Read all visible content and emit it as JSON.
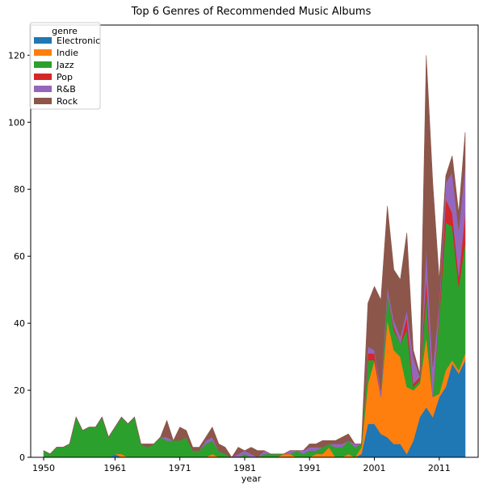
{
  "chart_data": {
    "type": "area",
    "title": "Top 6 Genres of Recommended Music Albums",
    "xlabel": "year",
    "ylabel": "",
    "xlim": [
      1948,
      2017
    ],
    "ylim": [
      0,
      129
    ],
    "x_ticks": [
      1950,
      1961,
      1971,
      1981,
      1991,
      2001,
      2011
    ],
    "y_ticks": [
      0,
      20,
      40,
      60,
      80,
      100,
      120
    ],
    "legend": {
      "title": "genre",
      "placement": "top-left"
    },
    "grid": false,
    "stacked": true,
    "x": [
      1950,
      1951,
      1952,
      1953,
      1954,
      1955,
      1956,
      1957,
      1958,
      1959,
      1960,
      1961,
      1962,
      1963,
      1964,
      1965,
      1966,
      1967,
      1968,
      1969,
      1970,
      1971,
      1972,
      1973,
      1974,
      1975,
      1976,
      1977,
      1978,
      1979,
      1980,
      1981,
      1982,
      1983,
      1984,
      1985,
      1986,
      1987,
      1988,
      1989,
      1990,
      1991,
      1992,
      1993,
      1994,
      1995,
      1996,
      1997,
      1998,
      1999,
      2000,
      2001,
      2002,
      2003,
      2004,
      2005,
      2006,
      2007,
      2008,
      2009,
      2010,
      2011,
      2012,
      2013,
      2014,
      2015
    ],
    "series": [
      {
        "name": "Electronic",
        "color": "#1f77b4",
        "values": [
          0,
          0,
          0,
          0,
          0,
          0,
          0,
          0,
          0,
          0,
          0,
          1,
          0,
          0,
          0,
          0,
          0,
          0,
          0,
          0,
          0,
          0,
          0,
          0,
          0,
          0,
          0,
          0,
          0,
          0,
          0,
          0,
          0,
          0,
          0,
          0,
          0,
          0,
          0,
          0,
          0,
          0,
          0,
          0,
          0,
          0,
          0,
          0,
          0,
          1,
          10,
          10,
          7,
          6,
          4,
          4,
          1,
          5,
          12,
          15,
          12,
          18,
          21,
          28,
          25,
          29
        ]
      },
      {
        "name": "Indie",
        "color": "#ff7f0e",
        "values": [
          0,
          0,
          0,
          0,
          0,
          0,
          0,
          0,
          0,
          0,
          0,
          0,
          1,
          0,
          0,
          0,
          0,
          0,
          0,
          0,
          0,
          0,
          0,
          0,
          0,
          0,
          1,
          0,
          0,
          0,
          0,
          0,
          0,
          0,
          0,
          0,
          0,
          1,
          1,
          0,
          0,
          0,
          1,
          1,
          3,
          0,
          0,
          1,
          0,
          2,
          12,
          19,
          11,
          35,
          28,
          26,
          20,
          15,
          10,
          21,
          6,
          1,
          5,
          1,
          1,
          2
        ]
      },
      {
        "name": "Jazz",
        "color": "#2ca02c",
        "values": [
          2,
          1,
          3,
          3,
          4,
          12,
          8,
          9,
          9,
          12,
          6,
          8,
          11,
          10,
          12,
          4,
          3,
          4,
          6,
          5,
          5,
          5,
          6,
          2,
          2,
          4,
          4,
          2,
          1,
          0,
          0,
          1,
          0,
          0,
          1,
          1,
          1,
          0,
          0,
          2,
          1,
          2,
          1,
          2,
          1,
          3,
          3,
          4,
          3,
          1,
          7,
          0,
          0,
          8,
          6,
          4,
          17,
          1,
          1,
          13,
          0,
          23,
          44,
          40,
          25,
          33
        ]
      },
      {
        "name": "Pop",
        "color": "#d62728",
        "values": [
          0,
          0,
          0,
          0,
          0,
          0,
          0,
          0,
          0,
          0,
          0,
          0,
          0,
          0,
          0,
          0,
          0,
          0,
          0,
          0,
          0,
          0,
          0,
          0,
          0,
          0,
          0,
          0,
          0,
          0,
          0,
          0,
          0,
          0,
          0,
          0,
          0,
          0,
          0,
          0,
          0,
          0,
          0,
          0,
          0,
          0,
          0,
          0,
          0,
          0,
          2,
          2,
          0,
          0,
          1,
          0,
          4,
          1,
          1,
          5,
          0,
          2,
          7,
          4,
          3,
          9
        ]
      },
      {
        "name": "R&B",
        "color": "#9467bd",
        "values": [
          0,
          0,
          0,
          0,
          0,
          0,
          0,
          0,
          0,
          0,
          0,
          0,
          0,
          0,
          0,
          0,
          0,
          0,
          0,
          1,
          0,
          0,
          0,
          0,
          0,
          1,
          1,
          0,
          0,
          0,
          1,
          1,
          1,
          0,
          1,
          0,
          0,
          0,
          1,
          0,
          1,
          1,
          1,
          0,
          0,
          1,
          1,
          0,
          1,
          0,
          2,
          1,
          2,
          2,
          2,
          2,
          2,
          8,
          0,
          9,
          9,
          2,
          5,
          12,
          14,
          14
        ]
      },
      {
        "name": "Rock",
        "color": "#8c564b",
        "values": [
          0,
          0,
          0,
          0,
          0,
          0,
          0,
          0,
          0,
          0,
          0,
          0,
          0,
          0,
          0,
          0,
          1,
          0,
          0,
          5,
          0,
          4,
          2,
          1,
          1,
          1,
          3,
          2,
          2,
          0,
          2,
          0,
          2,
          2,
          0,
          0,
          0,
          0,
          0,
          0,
          0,
          1,
          1,
          2,
          1,
          1,
          2,
          2,
          0,
          0,
          13,
          19,
          27,
          24,
          15,
          17,
          23,
          2,
          1,
          57,
          55,
          7,
          2,
          5,
          5,
          10
        ]
      }
    ]
  }
}
